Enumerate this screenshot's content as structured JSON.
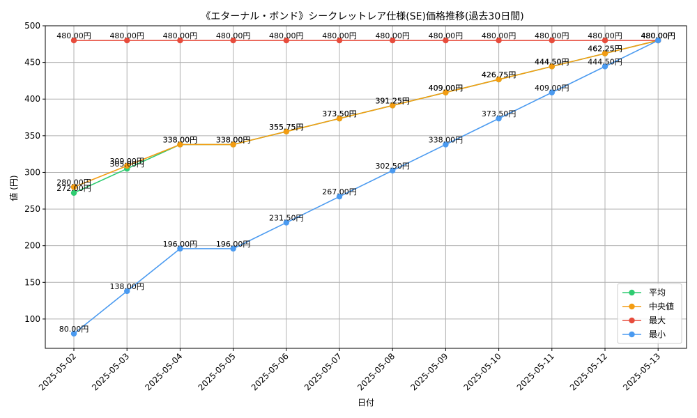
{
  "chart_data": {
    "type": "line",
    "title": "《エターナル・ボンド》シークレットレア仕様(SE)価格推移(過去30日間)",
    "xlabel": "日付",
    "ylabel": "値 (円)",
    "ylim": [
      60,
      500
    ],
    "yticks": [
      100,
      150,
      200,
      250,
      300,
      350,
      400,
      450,
      500
    ],
    "grid": true,
    "legend_position": "bottom-right",
    "label_suffix": "円",
    "categories": [
      "2025-05-02",
      "2025-05-03",
      "2025-05-04",
      "2025-05-05",
      "2025-05-06",
      "2025-05-07",
      "2025-05-08",
      "2025-05-09",
      "2025-05-10",
      "2025-05-11",
      "2025-05-12",
      "2025-05-13"
    ],
    "series": [
      {
        "name": "平均",
        "color": "#2ecc71",
        "values": [
          272.0,
          305.0,
          338.0,
          338.0,
          355.75,
          373.5,
          391.25,
          409.0,
          426.75,
          444.5,
          462.25,
          480.0
        ]
      },
      {
        "name": "中央値",
        "color": "#f39c12",
        "values": [
          280.0,
          309.0,
          338.0,
          338.0,
          355.75,
          373.5,
          391.25,
          409.0,
          426.75,
          444.5,
          462.25,
          480.0
        ]
      },
      {
        "name": "最大",
        "color": "#e74c3c",
        "values": [
          480.0,
          480.0,
          480.0,
          480.0,
          480.0,
          480.0,
          480.0,
          480.0,
          480.0,
          480.0,
          480.0,
          480.0
        ]
      },
      {
        "name": "最小",
        "color": "#4a9af0",
        "values": [
          80.0,
          138.0,
          196.0,
          196.0,
          231.5,
          267.0,
          302.5,
          338.0,
          373.5,
          409.0,
          444.5,
          480.0
        ]
      }
    ]
  }
}
